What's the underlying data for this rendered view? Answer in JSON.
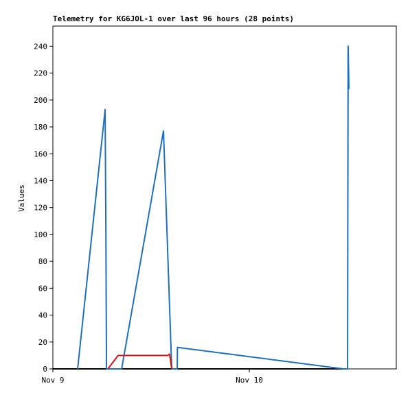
{
  "chart_data": {
    "type": "line",
    "title": "Telemetry for KG6JOL-1 over last 96 hours (28 points)",
    "y_label": "Values",
    "xlim": [
      0,
      1.748
    ],
    "xticks": [
      {
        "value": 0,
        "label": "Nov 9"
      },
      {
        "value": 1,
        "label": "Nov 10"
      }
    ],
    "ylim": [
      0,
      255
    ],
    "yticks": [
      0,
      20,
      40,
      60,
      80,
      100,
      120,
      140,
      160,
      180,
      200,
      220,
      240
    ],
    "series": [
      {
        "color": "#000000",
        "x": [
          0,
          1.5
        ],
        "values": [
          0,
          0
        ]
      },
      {
        "color": "#1f6fbf",
        "x": [
          0.126,
          0.266,
          0.27,
          0.273,
          0.35,
          0.563,
          0.605,
          0.633,
          0.634,
          1.479,
          1.5,
          1.503,
          1.507
        ],
        "values": [
          0,
          193,
          96,
          0,
          0,
          177,
          0,
          0,
          16,
          0,
          0,
          240,
          208
        ]
      },
      {
        "color": "#dd1111",
        "x": [
          0.28,
          0.332,
          0.584,
          0.594,
          0.605
        ],
        "values": [
          0,
          10,
          10,
          11,
          0
        ]
      }
    ]
  }
}
